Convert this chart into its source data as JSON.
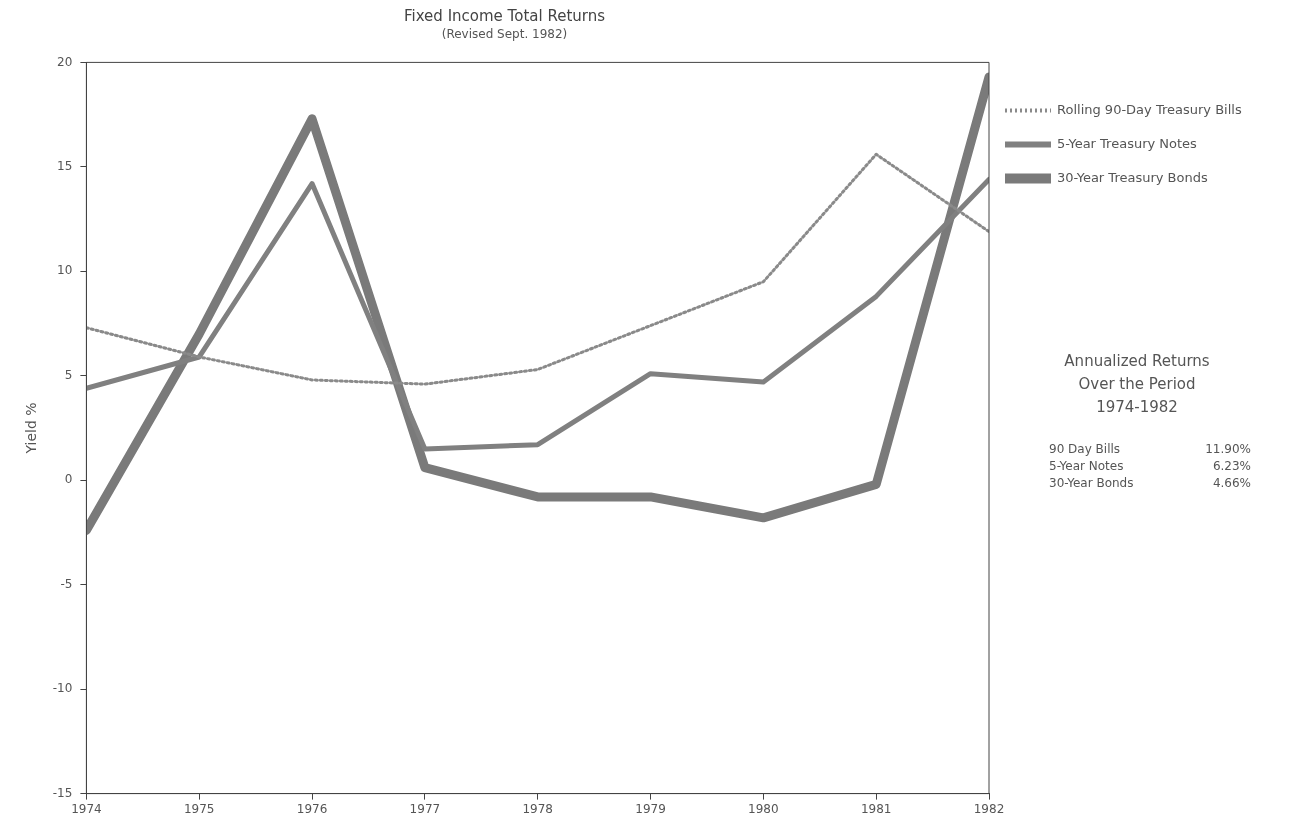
{
  "chart_data": {
    "type": "line",
    "title": "Fixed Income Total Returns",
    "subtitle": "(Revised Sept. 1982)",
    "ylabel": "Yield %",
    "x": [
      1974,
      1975,
      1976,
      1977,
      1978,
      1979,
      1980,
      1981,
      1982
    ],
    "series": [
      {
        "name": "Rolling 90-Day Treasury Bills",
        "color": "#8a8a8a",
        "line_style": "dotted",
        "values": [
          7.3,
          5.9,
          4.8,
          4.6,
          5.3,
          7.4,
          9.5,
          15.6,
          11.9
        ]
      },
      {
        "name": "5-Year Treasury Notes",
        "color": "#808080",
        "values": [
          4.4,
          5.9,
          14.2,
          1.5,
          1.7,
          5.1,
          4.7,
          8.8,
          14.4
        ]
      },
      {
        "name": "30-Year Treasury Bonds",
        "color": "#7a7a7a",
        "values": [
          -2.4,
          7.0,
          17.3,
          0.6,
          -0.8,
          -0.8,
          -1.8,
          -0.2,
          19.3
        ]
      }
    ],
    "xlim": [
      1974,
      1982
    ],
    "xticks": [
      1974,
      1975,
      1976,
      1977,
      1978,
      1979,
      1980,
      1981,
      1982
    ],
    "ylim": [
      -15,
      20
    ],
    "yticks": [
      -15,
      -10,
      -5,
      0,
      5,
      10,
      15,
      20
    ],
    "legend": "right",
    "marker": "none",
    "grid": false,
    "annotations": [
      "Annualized Returns",
      "Over the Period",
      "1974-1982",
      "90 Day Bills",
      "11.90%",
      "5-Year Notes",
      "6.23%",
      "30-Year Bonds",
      "4.66%"
    ]
  }
}
